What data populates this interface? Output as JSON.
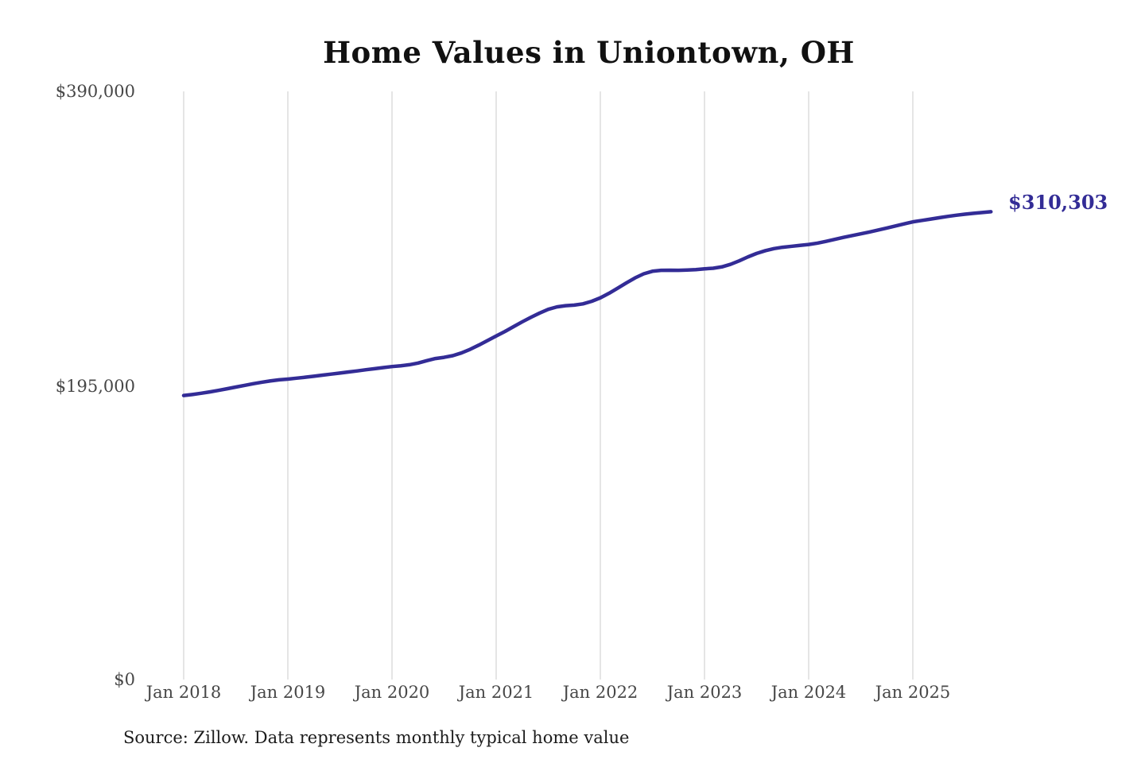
{
  "chart_data": {
    "type": "line",
    "title": "Home Values in Uniontown, OH",
    "series_name": "Monthly typical home value",
    "x_months": [
      "2018-01",
      "2018-02",
      "2018-03",
      "2018-04",
      "2018-05",
      "2018-06",
      "2018-07",
      "2018-08",
      "2018-09",
      "2018-10",
      "2018-11",
      "2018-12",
      "2019-01",
      "2019-02",
      "2019-03",
      "2019-04",
      "2019-05",
      "2019-06",
      "2019-07",
      "2019-08",
      "2019-09",
      "2019-10",
      "2019-11",
      "2019-12",
      "2020-01",
      "2020-02",
      "2020-03",
      "2020-04",
      "2020-05",
      "2020-06",
      "2020-07",
      "2020-08",
      "2020-09",
      "2020-10",
      "2020-11",
      "2020-12",
      "2021-01",
      "2021-02",
      "2021-03",
      "2021-04",
      "2021-05",
      "2021-06",
      "2021-07",
      "2021-08",
      "2021-09",
      "2021-10",
      "2021-11",
      "2021-12",
      "2022-01",
      "2022-02",
      "2022-03",
      "2022-04",
      "2022-05",
      "2022-06",
      "2022-07",
      "2022-08",
      "2022-09",
      "2022-10",
      "2022-11",
      "2022-12",
      "2023-01",
      "2023-02",
      "2023-03",
      "2023-04",
      "2023-05",
      "2023-06",
      "2023-07",
      "2023-08",
      "2023-09",
      "2023-10",
      "2023-11",
      "2023-12",
      "2024-01",
      "2024-02",
      "2024-03",
      "2024-04",
      "2024-05",
      "2024-06",
      "2024-07",
      "2024-08",
      "2024-09",
      "2024-10",
      "2024-11",
      "2024-12",
      "2025-01",
      "2025-02",
      "2025-03",
      "2025-04",
      "2025-05",
      "2025-06",
      "2025-07",
      "2025-08",
      "2025-09",
      "2025-10"
    ],
    "values": [
      188600,
      189300,
      190100,
      191000,
      192000,
      193100,
      194200,
      195300,
      196400,
      197400,
      198300,
      199000,
      199500,
      200100,
      200700,
      201400,
      202100,
      202800,
      203500,
      204200,
      204900,
      205700,
      206400,
      207100,
      207800,
      208300,
      209000,
      210100,
      211700,
      213100,
      213900,
      215000,
      216800,
      219200,
      222000,
      225000,
      228000,
      231000,
      234200,
      237400,
      240400,
      243200,
      245700,
      247300,
      248100,
      248500,
      249300,
      251000,
      253300,
      256300,
      259700,
      263200,
      266500,
      269200,
      270900,
      271500,
      271600,
      271500,
      271700,
      272000,
      272500,
      272900,
      273800,
      275500,
      277800,
      280400,
      282700,
      284500,
      285900,
      286800,
      287400,
      288000,
      288600,
      289500,
      290700,
      292000,
      293300,
      294500,
      295700,
      296900,
      298200,
      299500,
      300900,
      302300,
      303600,
      304500,
      305400,
      306300,
      307200,
      308000,
      308700,
      309300,
      309800,
      310303
    ],
    "x_axis": {
      "tick_labels": [
        "Jan 2018",
        "Jan 2019",
        "Jan 2020",
        "Jan 2021",
        "Jan 2022",
        "Jan 2023",
        "Jan 2024",
        "Jan 2025"
      ]
    },
    "y_axis": {
      "tick_labels": [
        "$0",
        "$195,000",
        "$390,000"
      ],
      "tick_values": [
        0,
        195000,
        390000
      ],
      "min": 0,
      "max": 390000
    },
    "end_label": "$310,303",
    "source_note": "Source: Zillow. Data represents monthly typical home value",
    "grid": "vertical-only",
    "legend_position": "none",
    "colors": {
      "line": "#332c96",
      "end_label": "#332c96",
      "grid": "#cbcbcb",
      "axis_text": "#474747",
      "title_text": "#111111",
      "source_text": "#1c1c1c"
    }
  }
}
